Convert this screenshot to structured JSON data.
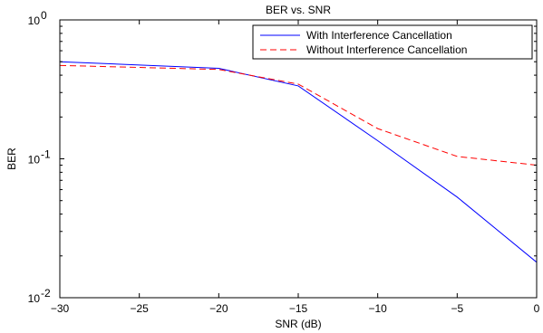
{
  "chart_data": {
    "type": "line",
    "title": "BER vs. SNR",
    "xlabel": "SNR (dB)",
    "ylabel": "BER",
    "xscale": "linear",
    "yscale": "log",
    "xlim": [
      -30,
      0
    ],
    "ylim": [
      0.01,
      1
    ],
    "grid": false,
    "legend_position": "top-right",
    "x_ticks": [
      -30,
      -25,
      -20,
      -15,
      -10,
      -5,
      0
    ],
    "x_tick_labels": [
      "−30",
      "−25",
      "−20",
      "−15",
      "−10",
      "−5",
      "0"
    ],
    "y_ticks": [
      0.01,
      0.1,
      1
    ],
    "y_tick_labels": [
      {
        "base": "10",
        "exp": "-2"
      },
      {
        "base": "10",
        "exp": "-1"
      },
      {
        "base": "10",
        "exp": "0"
      }
    ],
    "x": [
      -30,
      -20,
      -15,
      -10,
      -5,
      0
    ],
    "series": [
      {
        "name": "With Interference Cancellation",
        "color": "#0000ff",
        "dash": "solid",
        "values": [
          0.5,
          0.448,
          0.335,
          0.135,
          0.053,
          0.018
        ]
      },
      {
        "name": "Without Interference Cancellation",
        "color": "#ff0000",
        "dash": "dashed",
        "values": [
          0.47,
          0.44,
          0.345,
          0.165,
          0.104,
          0.09
        ]
      }
    ]
  }
}
